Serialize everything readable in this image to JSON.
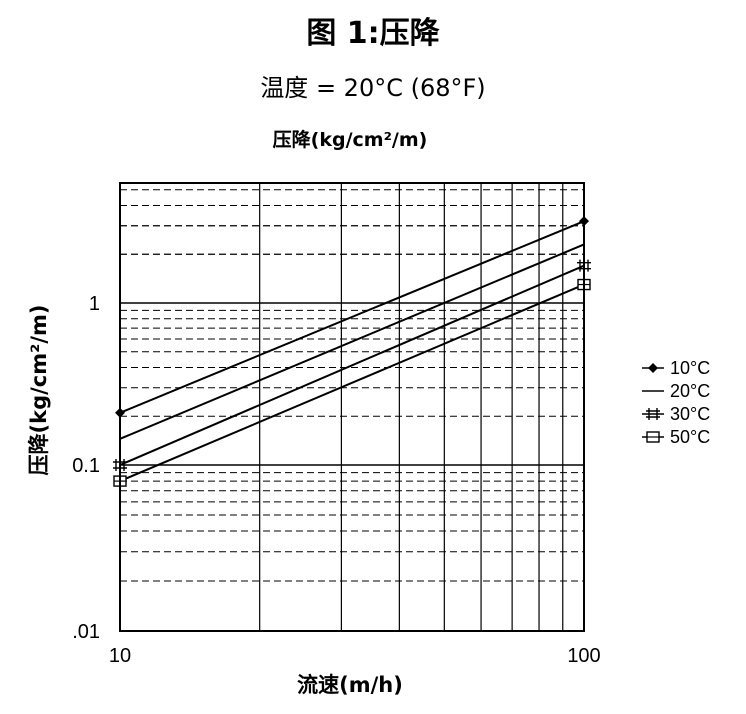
{
  "figure": {
    "title": "图 1:压降",
    "subtitle": "温度 = 20°C (68°F)"
  },
  "chart_data": {
    "type": "line",
    "title": "压降(kg/cm²/m)",
    "xlabel": "流速(m/h)",
    "ylabel": "压降(kg/cm²/m)",
    "x_scale": "log",
    "y_scale": "log",
    "xlim": [
      10,
      100
    ],
    "ylim": [
      0.01,
      5
    ],
    "x_ticks": [
      10,
      100
    ],
    "x_tick_labels": [
      "10",
      "100"
    ],
    "y_ticks": [
      0.01,
      0.1,
      1
    ],
    "y_tick_labels": [
      ".01",
      "0.1",
      "1"
    ],
    "grid": true,
    "legend_position": "right",
    "series": [
      {
        "name": "10°C",
        "marker": "diamond",
        "x": [
          10,
          100
        ],
        "y": [
          0.21,
          3.2
        ]
      },
      {
        "name": "20°C",
        "marker": "none",
        "x": [
          10,
          100
        ],
        "y": [
          0.145,
          2.3
        ]
      },
      {
        "name": "30°C",
        "marker": "plus",
        "x": [
          10,
          100
        ],
        "y": [
          0.1,
          1.7
        ]
      },
      {
        "name": "50°C",
        "marker": "square",
        "x": [
          10,
          100
        ],
        "y": [
          0.08,
          1.3
        ]
      }
    ]
  }
}
